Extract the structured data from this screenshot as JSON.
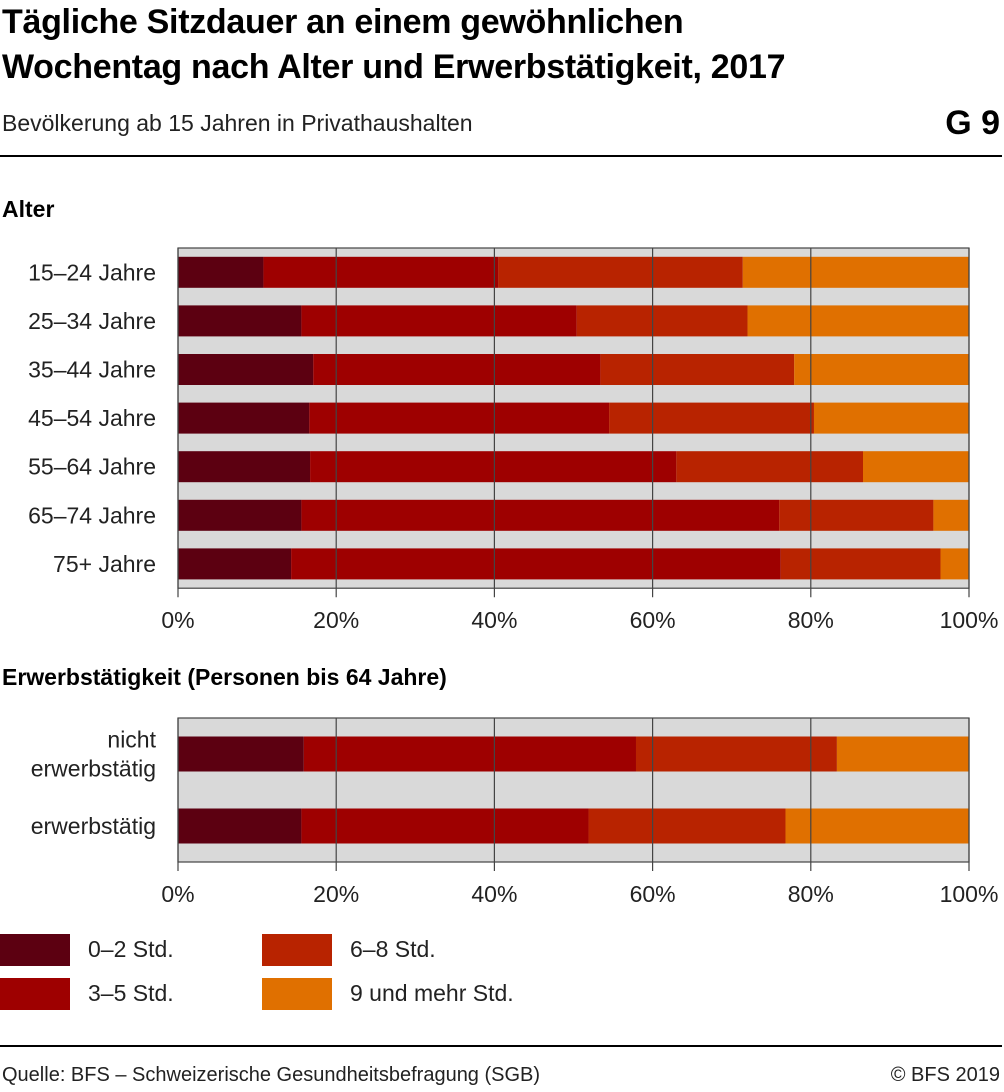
{
  "header": {
    "title_line1": "Tägliche Sitzdauer an einem gewöhnlichen",
    "title_line2": "Wochentag nach Alter und Erwerbstätigkeit, 2017",
    "subtitle": "Bevölkerung ab 15 Jahren in Privathaushalten",
    "figure_number": "G 9"
  },
  "colors": {
    "s1": "#5c0011",
    "s2": "#9e0000",
    "s3": "#b82300",
    "s4": "#e07000",
    "plot_bg": "#d9d9d9",
    "grid": "#444444"
  },
  "legend": {
    "items": [
      "0–2 Std.",
      "3–5 Std.",
      "6–8 Std.",
      "9 und mehr Std."
    ]
  },
  "footer": {
    "source": "Quelle: BFS – Schweizerische Gesundheitsbefragung (SGB)",
    "copyright": "© BFS 2019"
  },
  "chart_data": [
    {
      "type": "bar",
      "orientation": "horizontal",
      "stacked": true,
      "title": "Alter",
      "categories": [
        "15–24 Jahre",
        "25–34 Jahre",
        "35–44 Jahre",
        "45–54 Jahre",
        "55–64 Jahre",
        "65–74 Jahre",
        "75+ Jahre"
      ],
      "series": [
        {
          "name": "0–2 Std.",
          "values": [
            10.8,
            15.6,
            17.1,
            16.6,
            16.7,
            15.6,
            14.3
          ]
        },
        {
          "name": "3–5 Std.",
          "values": [
            29.7,
            34.8,
            36.3,
            37.9,
            46.3,
            60.4,
            61.9
          ]
        },
        {
          "name": "6–8 Std.",
          "values": [
            30.9,
            21.6,
            24.5,
            25.9,
            23.6,
            19.5,
            20.2
          ]
        },
        {
          "name": "9 und mehr Std.",
          "values": [
            28.6,
            28.0,
            22.1,
            19.6,
            13.4,
            4.5,
            3.6
          ]
        }
      ],
      "xlim": [
        0,
        100
      ],
      "xticks": [
        "0%",
        "20%",
        "40%",
        "60%",
        "80%",
        "100%"
      ],
      "grid": true
    },
    {
      "type": "bar",
      "orientation": "horizontal",
      "stacked": true,
      "title": "Erwerbstätigkeit (Personen bis 64 Jahre)",
      "categories": [
        "nicht erwerbstätig",
        "erwerbstätig"
      ],
      "series": [
        {
          "name": "0–2 Std.",
          "values": [
            15.9,
            15.6
          ]
        },
        {
          "name": "3–5 Std.",
          "values": [
            42.0,
            36.3
          ]
        },
        {
          "name": "6–8 Std.",
          "values": [
            25.4,
            24.9
          ]
        },
        {
          "name": "9 und mehr Std.",
          "values": [
            16.7,
            23.2
          ]
        }
      ],
      "xlim": [
        0,
        100
      ],
      "xticks": [
        "0%",
        "20%",
        "40%",
        "60%",
        "80%",
        "100%"
      ],
      "grid": true
    }
  ]
}
